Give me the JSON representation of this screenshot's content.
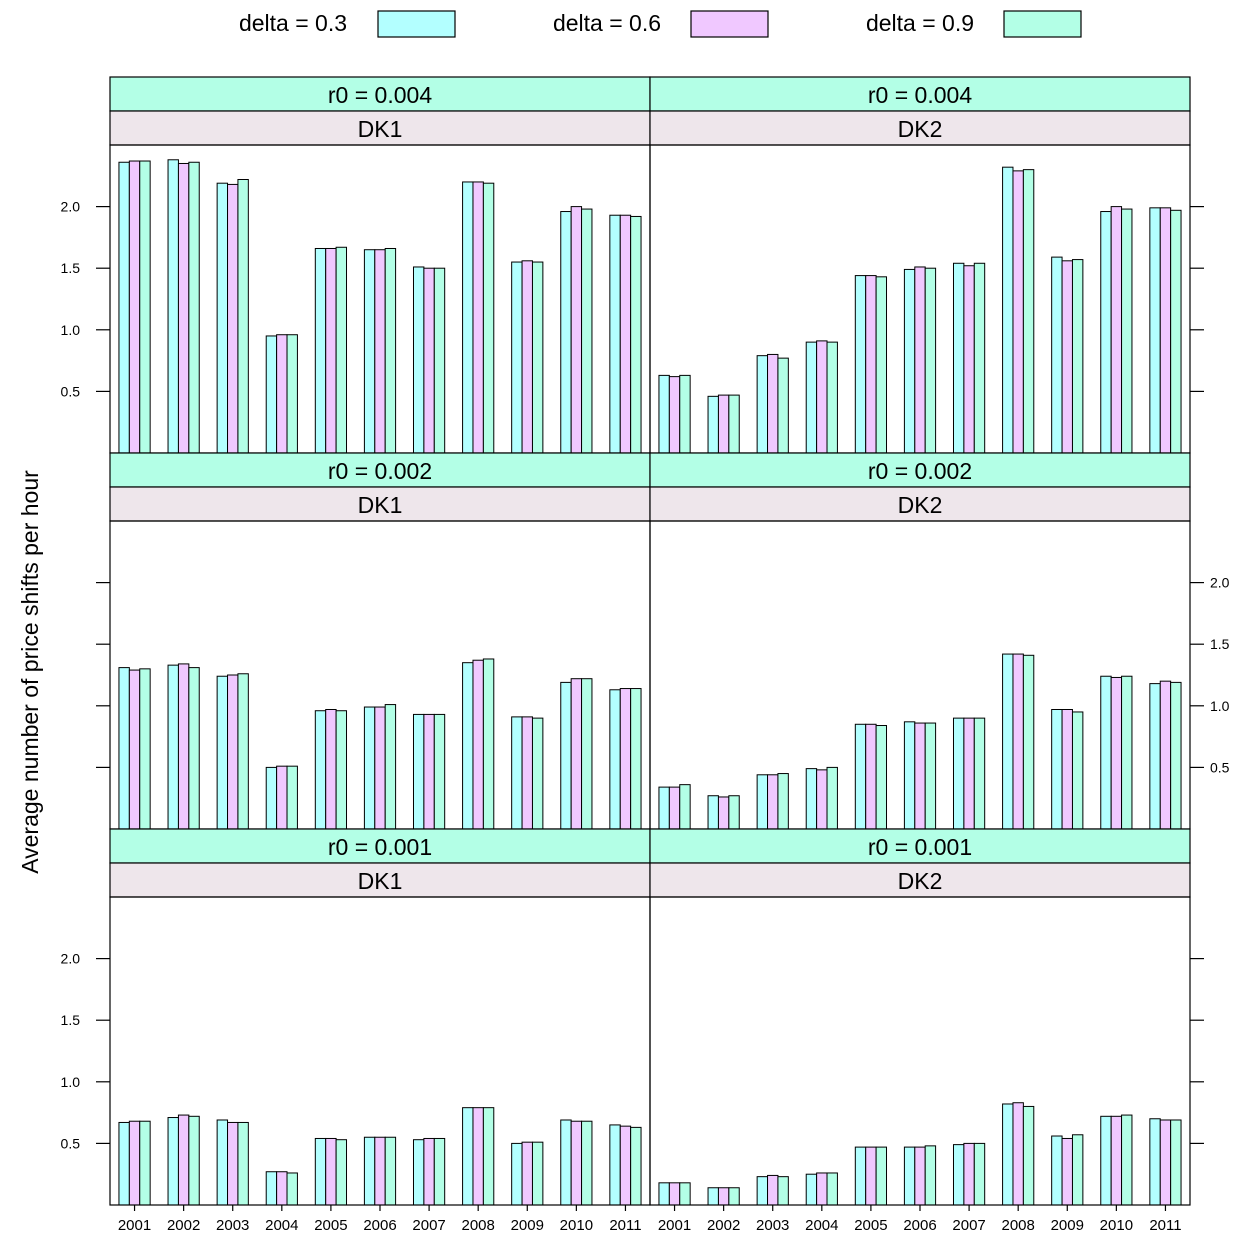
{
  "chart_data": {
    "type": "bar",
    "ylabel": "Average number of price shifts per hour",
    "xlabel": "",
    "categories": [
      "2001",
      "2002",
      "2003",
      "2004",
      "2005",
      "2006",
      "2007",
      "2008",
      "2009",
      "2010",
      "2011"
    ],
    "ylim": [
      0,
      2.5
    ],
    "yticks": [
      0.5,
      1.0,
      1.5,
      2.0
    ],
    "ytick_labels": [
      "0.5",
      "1.0",
      "1.5",
      "2.0"
    ],
    "grid": false,
    "legend_position": "top",
    "legend": [
      {
        "label": "delta = 0.3",
        "color": "#B3FFFF"
      },
      {
        "label": "delta = 0.6",
        "color": "#F0C8FF"
      },
      {
        "label": "delta = 0.9",
        "color": "#B3FFE6"
      }
    ],
    "strip_colors": {
      "r0": "#B3FFE6",
      "area": "#EEE6EB"
    },
    "panels": [
      {
        "r0_label": "r0 = 0.004",
        "area_label": "DK1",
        "series": [
          {
            "name": "delta = 0.3",
            "values": [
              2.36,
              2.38,
              2.19,
              0.95,
              1.66,
              1.65,
              1.51,
              2.2,
              1.55,
              1.96,
              1.93
            ]
          },
          {
            "name": "delta = 0.6",
            "values": [
              2.37,
              2.35,
              2.18,
              0.96,
              1.66,
              1.65,
              1.5,
              2.2,
              1.56,
              2.0,
              1.93
            ]
          },
          {
            "name": "delta = 0.9",
            "values": [
              2.37,
              2.36,
              2.22,
              0.96,
              1.67,
              1.66,
              1.5,
              2.19,
              1.55,
              1.98,
              1.92
            ]
          }
        ]
      },
      {
        "r0_label": "r0 = 0.004",
        "area_label": "DK2",
        "series": [
          {
            "name": "delta = 0.3",
            "values": [
              0.63,
              0.46,
              0.79,
              0.9,
              1.44,
              1.49,
              1.54,
              2.32,
              1.59,
              1.96,
              1.99
            ]
          },
          {
            "name": "delta = 0.6",
            "values": [
              0.62,
              0.47,
              0.8,
              0.91,
              1.44,
              1.51,
              1.52,
              2.29,
              1.56,
              2.0,
              1.99
            ]
          },
          {
            "name": "delta = 0.9",
            "values": [
              0.63,
              0.47,
              0.77,
              0.9,
              1.43,
              1.5,
              1.54,
              2.3,
              1.57,
              1.98,
              1.97
            ]
          }
        ]
      },
      {
        "r0_label": "r0 = 0.002",
        "area_label": "DK1",
        "series": [
          {
            "name": "delta = 0.3",
            "values": [
              1.31,
              1.33,
              1.24,
              0.5,
              0.96,
              0.99,
              0.93,
              1.35,
              0.91,
              1.19,
              1.13
            ]
          },
          {
            "name": "delta = 0.6",
            "values": [
              1.29,
              1.34,
              1.25,
              0.51,
              0.97,
              0.99,
              0.93,
              1.37,
              0.91,
              1.22,
              1.14
            ]
          },
          {
            "name": "delta = 0.9",
            "values": [
              1.3,
              1.31,
              1.26,
              0.51,
              0.96,
              1.01,
              0.93,
              1.38,
              0.9,
              1.22,
              1.14
            ]
          }
        ]
      },
      {
        "r0_label": "r0 = 0.002",
        "area_label": "DK2",
        "series": [
          {
            "name": "delta = 0.3",
            "values": [
              0.34,
              0.27,
              0.44,
              0.49,
              0.85,
              0.87,
              0.9,
              1.42,
              0.97,
              1.24,
              1.18
            ]
          },
          {
            "name": "delta = 0.6",
            "values": [
              0.34,
              0.26,
              0.44,
              0.48,
              0.85,
              0.86,
              0.9,
              1.42,
              0.97,
              1.23,
              1.2
            ]
          },
          {
            "name": "delta = 0.9",
            "values": [
              0.36,
              0.27,
              0.45,
              0.5,
              0.84,
              0.86,
              0.9,
              1.41,
              0.95,
              1.24,
              1.19
            ]
          }
        ]
      },
      {
        "r0_label": "r0 = 0.001",
        "area_label": "DK1",
        "series": [
          {
            "name": "delta = 0.3",
            "values": [
              0.67,
              0.71,
              0.69,
              0.27,
              0.54,
              0.55,
              0.53,
              0.79,
              0.5,
              0.69,
              0.65
            ]
          },
          {
            "name": "delta = 0.6",
            "values": [
              0.68,
              0.73,
              0.67,
              0.27,
              0.54,
              0.55,
              0.54,
              0.79,
              0.51,
              0.68,
              0.64
            ]
          },
          {
            "name": "delta = 0.9",
            "values": [
              0.68,
              0.72,
              0.67,
              0.26,
              0.53,
              0.55,
              0.54,
              0.79,
              0.51,
              0.68,
              0.63
            ]
          }
        ]
      },
      {
        "r0_label": "r0 = 0.001",
        "area_label": "DK2",
        "series": [
          {
            "name": "delta = 0.3",
            "values": [
              0.18,
              0.14,
              0.23,
              0.25,
              0.47,
              0.47,
              0.49,
              0.82,
              0.56,
              0.72,
              0.7
            ]
          },
          {
            "name": "delta = 0.6",
            "values": [
              0.18,
              0.14,
              0.24,
              0.26,
              0.47,
              0.47,
              0.5,
              0.83,
              0.54,
              0.72,
              0.69
            ]
          },
          {
            "name": "delta = 0.9",
            "values": [
              0.18,
              0.14,
              0.23,
              0.26,
              0.47,
              0.48,
              0.5,
              0.8,
              0.57,
              0.73,
              0.69
            ]
          }
        ]
      }
    ]
  }
}
